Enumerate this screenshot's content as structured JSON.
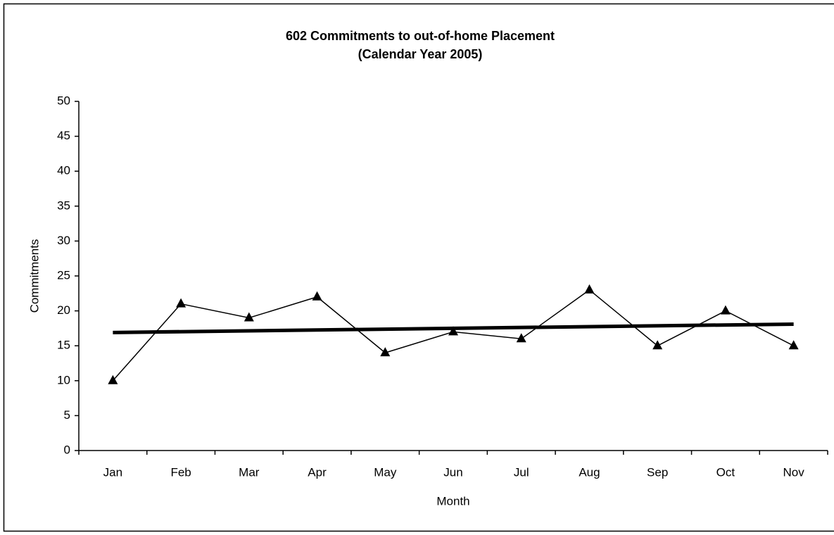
{
  "chart_data": {
    "type": "line",
    "title": "602 Commitments to out-of-home Placement",
    "subtitle": "(Calendar Year 2005)",
    "x_label": "Month",
    "y_label": "Commitments",
    "categories": [
      "Jan",
      "Feb",
      "Mar",
      "Apr",
      "May",
      "Jun",
      "Jul",
      "Aug",
      "Sep",
      "Oct",
      "Nov"
    ],
    "series": [
      {
        "color": "#000000",
        "values": [
          10,
          21,
          19,
          22,
          14,
          17,
          16,
          23,
          15,
          20,
          15
        ]
      }
    ],
    "trendline": {
      "color": "#000000",
      "values": [
        16.9,
        18.1
      ]
    },
    "ylim": [
      0,
      50
    ],
    "yticks": [
      0,
      5,
      10,
      15,
      20,
      25,
      30,
      35,
      40,
      45,
      50
    ],
    "grid": false
  }
}
